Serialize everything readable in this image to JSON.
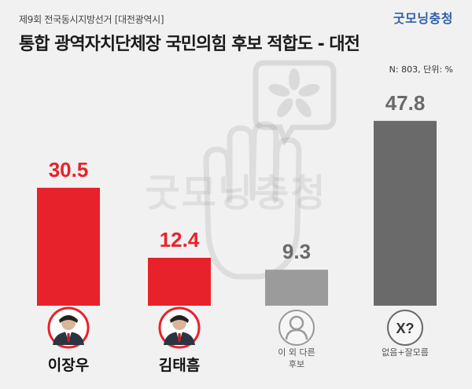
{
  "header": {
    "subtitle": "제9회 전국동시지방선거 [대전광역시]",
    "brand": "굿모닝충청",
    "title": "통합 광역자치단체장 국민의힘 후보 적합도 - 대전",
    "note": "N: 803, 단위: %"
  },
  "watermark_text": "굿모닝충청",
  "colors": {
    "red": "#e8222b",
    "gray_light": "#9b9b9b",
    "gray_dark": "#6a6a6a",
    "value_red": "#e8222b",
    "value_gray": "#6a6a6a"
  },
  "chart_data": {
    "type": "bar",
    "categories": [
      "이장우",
      "김태흠",
      "이 외 다른 후보",
      "없음+잘모름"
    ],
    "values": [
      30.5,
      12.4,
      9.3,
      47.8
    ],
    "value_labels": [
      "30.5",
      "12.4",
      "9.3",
      "47.8"
    ],
    "ylim": [
      0,
      50
    ],
    "title": "통합 광역자치단체장 국민의힘 후보 적합도 - 대전",
    "xlabel": "",
    "ylabel": "",
    "grid": false
  },
  "candidates": [
    {
      "label": "이장우",
      "icon": "portrait-photo-icon",
      "style": "bold",
      "color_key": "red"
    },
    {
      "label": "김태흠",
      "icon": "portrait-photo-icon",
      "style": "bold",
      "color_key": "red"
    },
    {
      "label": "이 외 다른\n후보",
      "icon": "person-silhouette-icon",
      "style": "small",
      "color_key": "gray_light"
    },
    {
      "label": "없음+잘모름",
      "icon": "unknown-x-question-icon",
      "style": "small",
      "color_key": "gray_dark"
    }
  ]
}
